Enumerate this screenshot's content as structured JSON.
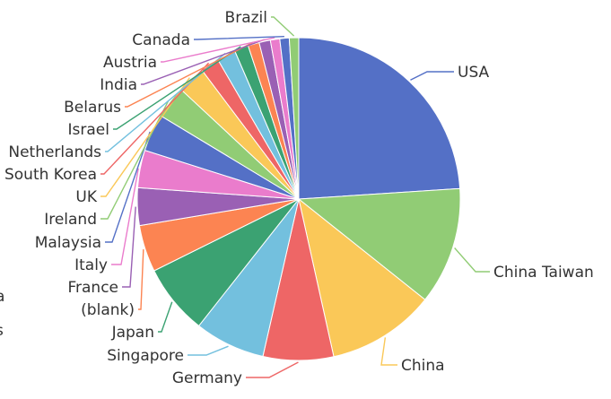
{
  "chart_data": {
    "type": "pie",
    "title": "",
    "series_name": "",
    "categories": [
      "USA",
      "China Taiwan",
      "China",
      "Germany",
      "Singapore",
      "Japan",
      "(blank)",
      "France",
      "Italy",
      "Malaysia",
      "Ireland",
      "UK",
      "South Korea",
      "Netherlands",
      "Israel",
      "Belarus",
      "India",
      "Austria",
      "Canada",
      "Brazil"
    ],
    "values": [
      25.5,
      12.5,
      11.5,
      7.5,
      7.5,
      7.5,
      5.0,
      4.0,
      4.0,
      4.0,
      3.5,
      3.0,
      2.0,
      2.0,
      1.5,
      1.2,
      1.2,
      1.0,
      1.0,
      1.0
    ],
    "colors": [
      "#5470c6",
      "#91cc75",
      "#fac858",
      "#ee6666",
      "#73c0de",
      "#3ba272",
      "#fc8452",
      "#9a60b4",
      "#ea7ccc",
      "#5470c6",
      "#91cc75",
      "#fac858",
      "#ee6666",
      "#73c0de",
      "#3ba272",
      "#fc8452",
      "#9a60b4",
      "#ea7ccc",
      "#5470c6",
      "#91cc75"
    ],
    "start_angle_deg": 0,
    "direction": "clockwise",
    "legend_fragments": [
      "a",
      "s"
    ],
    "legend": "none"
  }
}
